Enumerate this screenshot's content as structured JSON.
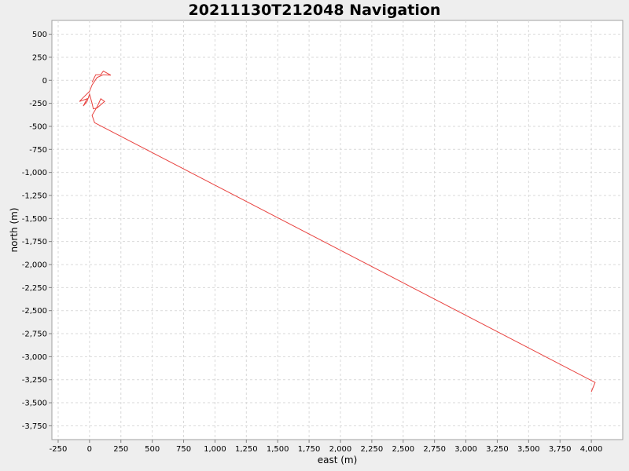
{
  "chart_data": {
    "type": "line",
    "title": "20211130T212048 Navigation",
    "xlabel": "east (m)",
    "ylabel": "north (m)",
    "xlim": [
      -300,
      4250
    ],
    "ylim": [
      -3900,
      650
    ],
    "x_ticks": [
      -250,
      0,
      250,
      500,
      750,
      1000,
      1250,
      1500,
      1750,
      2000,
      2250,
      2500,
      2750,
      3000,
      3250,
      3500,
      3750,
      4000
    ],
    "x_tick_labels": [
      "-250",
      "0",
      "250",
      "500",
      "750",
      "1,000",
      "1,250",
      "1,500",
      "1,750",
      "2,000",
      "2,250",
      "2,500",
      "2,750",
      "3,000",
      "3,250",
      "3,500",
      "3,750",
      "4,000"
    ],
    "y_ticks": [
      500,
      250,
      0,
      -250,
      -500,
      -750,
      -1000,
      -1250,
      -1500,
      -1750,
      -2000,
      -2250,
      -2500,
      -2750,
      -3000,
      -3250,
      -3500,
      -3750
    ],
    "y_tick_labels": [
      "500",
      "250",
      "0",
      "-250",
      "-500",
      "-750",
      "-1,000",
      "-1,250",
      "-1,500",
      "-1,750",
      "-2,000",
      "-2,250",
      "-2,500",
      "-2,750",
      "-3,000",
      "-3,250",
      "-3,500",
      "-3,750"
    ],
    "grid": true,
    "series": [
      {
        "color": "#e8423f",
        "points": [
          [
            20,
            -20
          ],
          [
            50,
            60
          ],
          [
            90,
            60
          ],
          [
            110,
            100
          ],
          [
            170,
            55
          ],
          [
            110,
            60
          ],
          [
            60,
            30
          ],
          [
            20,
            -50
          ],
          [
            0,
            -120
          ],
          [
            -60,
            -200
          ],
          [
            -80,
            -230
          ],
          [
            -20,
            -200
          ],
          [
            -50,
            -280
          ],
          [
            -20,
            -230
          ],
          [
            0,
            -150
          ],
          [
            20,
            -250
          ],
          [
            30,
            -310
          ],
          [
            60,
            -300
          ],
          [
            120,
            -230
          ],
          [
            90,
            -200
          ],
          [
            60,
            -290
          ],
          [
            20,
            -380
          ],
          [
            40,
            -460
          ],
          [
            4030,
            -3280
          ],
          [
            4000,
            -3380
          ]
        ]
      }
    ]
  }
}
